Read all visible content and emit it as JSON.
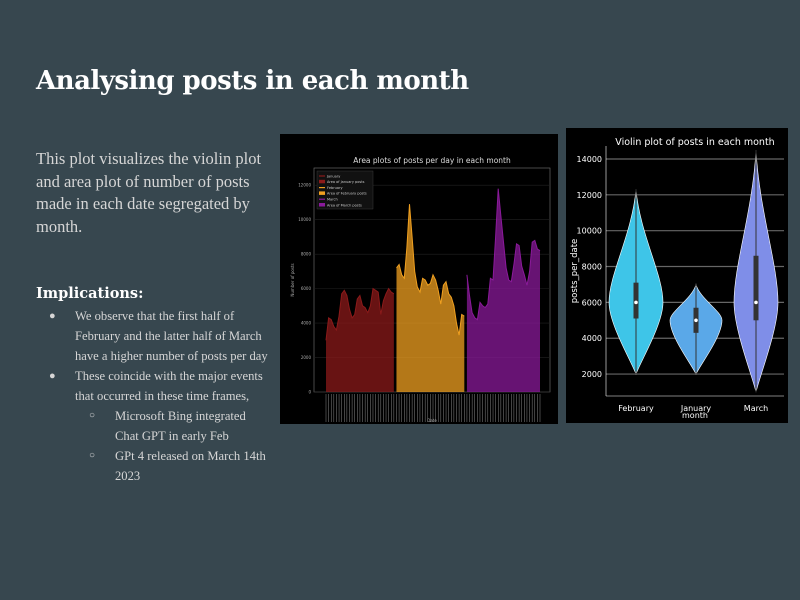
{
  "slide": {
    "title": "Analysing posts in each month",
    "intro": "This plot visualizes the violin plot and area plot of number of posts made in each date segregated by month.",
    "implications_heading": "Implications:",
    "bullets": [
      "We observe that the first half of February and the latter half of March have a higher number of posts per day",
      "These coincide with the major events that occurred in these time frames,"
    ],
    "sub_bullets": [
      "Microsoft Bing integrated Chat GPT in early Feb",
      "GPt 4 released on March 14th 2023"
    ]
  },
  "colors": {
    "background": "#37474f",
    "january": "#8b1a1a",
    "february": "#f0a020",
    "march": "#8a1a9a",
    "violin_february": "#3ec5e8",
    "violin_january": "#5aa8e8",
    "violin_march": "#7f8ee8"
  },
  "chart_data": [
    {
      "type": "area",
      "title": "Area plots of posts per day in each month",
      "xlabel": "Date",
      "ylabel": "Number of posts",
      "ylim": [
        0,
        13000
      ],
      "yticks": [
        0,
        2000,
        4000,
        6000,
        8000,
        10000,
        12000
      ],
      "grid": true,
      "legend_position": "top-left",
      "legend": [
        "January",
        "Area of January posts",
        "February",
        "Area of February posts",
        "March",
        "Area of March posts"
      ],
      "series": [
        {
          "name": "January",
          "values": [
            3000,
            4300,
            4200,
            3800,
            3600,
            4400,
            5700,
            5900,
            5600,
            4800,
            4300,
            4500,
            5400,
            5600,
            5000,
            4900,
            4600,
            5000,
            6000,
            5900,
            5800,
            4500,
            5300,
            5700,
            6000,
            5800,
            5700
          ]
        },
        {
          "name": "February",
          "values": [
            7200,
            7400,
            6800,
            6600,
            8400,
            10900,
            9000,
            7000,
            6100,
            5800,
            6600,
            6500,
            6200,
            6300,
            6800,
            6500,
            5900,
            5100,
            6200,
            6400,
            5700,
            5500,
            5000,
            4000,
            3300,
            4500,
            4400
          ]
        },
        {
          "name": "March",
          "values": [
            6800,
            5600,
            4600,
            4300,
            4200,
            5200,
            5000,
            4900,
            5100,
            6600,
            6500,
            9000,
            11800,
            10200,
            8700,
            7200,
            6500,
            6400,
            7400,
            8600,
            8500,
            7300,
            6800,
            6200,
            7000,
            8700,
            8800,
            8300,
            8200
          ]
        }
      ]
    },
    {
      "type": "violin",
      "title": "Violin plot of posts in each month",
      "xlabel": "month",
      "ylabel": "posts_per_date",
      "ylim": [
        1000,
        14500
      ],
      "yticks": [
        2000,
        4000,
        6000,
        8000,
        10000,
        12000,
        14000
      ],
      "grid": true,
      "categories": [
        "February",
        "January",
        "March"
      ],
      "series": [
        {
          "name": "February",
          "min": 2000,
          "max": 12300,
          "q1": 5100,
          "median": 6000,
          "q3": 7100
        },
        {
          "name": "January",
          "min": 2000,
          "max": 7000,
          "q1": 4300,
          "median": 5000,
          "q3": 5700
        },
        {
          "name": "March",
          "min": 1000,
          "max": 14500,
          "q1": 5000,
          "median": 6000,
          "q3": 8600
        }
      ]
    }
  ]
}
